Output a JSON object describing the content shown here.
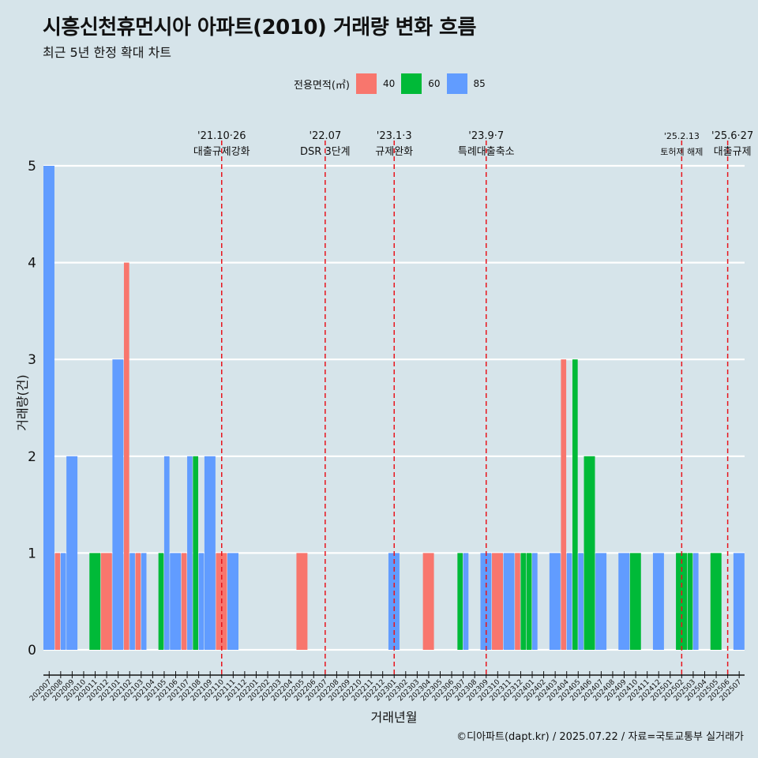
{
  "title": "시흥신천휴먼시아 아파트(2010) 거래량 변화 흐름",
  "subtitle": "최근 5년 한정 확대 차트",
  "caption": "©디아파트(dapt.kr) / 2025.07.22 / 자료=국토교통부 실거래가",
  "legend": {
    "title": "전용면적(㎡)",
    "items": [
      {
        "label": "40",
        "color": "#F8766D"
      },
      {
        "label": "60",
        "color": "#00BA38"
      },
      {
        "label": "85",
        "color": "#619CFF"
      }
    ]
  },
  "chart_data": {
    "type": "bar",
    "xlabel": "거래년월",
    "ylabel": "거래량(건)",
    "ylim": [
      0,
      5
    ],
    "yticks": [
      0,
      1,
      2,
      3,
      4,
      5
    ],
    "categories": [
      "202007",
      "202008",
      "202009",
      "202010",
      "202011",
      "202012",
      "202101",
      "202102",
      "202103",
      "202104",
      "202105",
      "202106",
      "202107",
      "202108",
      "202109",
      "202110",
      "202111",
      "202112",
      "202201",
      "202202",
      "202203",
      "202204",
      "202205",
      "202206",
      "202207",
      "202208",
      "202209",
      "202210",
      "202211",
      "202212",
      "202301",
      "202302",
      "202303",
      "202304",
      "202305",
      "202306",
      "202307",
      "202308",
      "202309",
      "202310",
      "202311",
      "202312",
      "202401",
      "202402",
      "202403",
      "202404",
      "202405",
      "202406",
      "202407",
      "202408",
      "202409",
      "202410",
      "202411",
      "202412",
      "202501",
      "202502",
      "202503",
      "202504",
      "202505",
      "202506",
      "202507"
    ],
    "series": [
      {
        "name": "40",
        "color": "#F8766D",
        "values": [
          0,
          1,
          0,
          0,
          0,
          1,
          0,
          4,
          1,
          0,
          0,
          0,
          1,
          0,
          0,
          1,
          0,
          0,
          0,
          0,
          0,
          0,
          1,
          0,
          0,
          0,
          0,
          0,
          0,
          0,
          0,
          0,
          0,
          1,
          0,
          0,
          0,
          0,
          0,
          1,
          0,
          1,
          0,
          0,
          0,
          3,
          0,
          0,
          0,
          0,
          0,
          0,
          0,
          0,
          0,
          0,
          0,
          0,
          0,
          0,
          0
        ]
      },
      {
        "name": "60",
        "color": "#00BA38",
        "values": [
          0,
          0,
          0,
          0,
          1,
          0,
          0,
          0,
          0,
          0,
          1,
          0,
          0,
          2,
          0,
          0,
          0,
          0,
          0,
          0,
          0,
          0,
          0,
          0,
          0,
          0,
          0,
          0,
          0,
          0,
          0,
          0,
          0,
          0,
          0,
          0,
          1,
          0,
          0,
          0,
          0,
          1,
          1,
          0,
          0,
          0,
          3,
          2,
          0,
          0,
          0,
          1,
          0,
          0,
          0,
          1,
          1,
          0,
          1,
          0,
          0
        ]
      },
      {
        "name": "85",
        "color": "#619CFF",
        "values": [
          5,
          1,
          2,
          0,
          0,
          0,
          3,
          1,
          1,
          0,
          2,
          1,
          2,
          1,
          2,
          0,
          1,
          0,
          0,
          0,
          0,
          0,
          0,
          0,
          0,
          0,
          0,
          0,
          0,
          0,
          1,
          0,
          0,
          0,
          0,
          0,
          1,
          0,
          1,
          0,
          1,
          0,
          1,
          0,
          1,
          1,
          1,
          0,
          1,
          0,
          1,
          0,
          0,
          1,
          0,
          0,
          1,
          0,
          0,
          0,
          1
        ]
      }
    ],
    "events": [
      {
        "category": "202110",
        "date": "'21.10·26",
        "label": "대출규제강화"
      },
      {
        "category": "202207",
        "date": "'22.07",
        "label": "DSR 3단계"
      },
      {
        "category": "202301",
        "date": "'23.1·3",
        "label": "규제완화"
      },
      {
        "category": "202309",
        "date": "'23.9·7",
        "label": "특례대출축소"
      },
      {
        "category": "202502",
        "date": "'25.2.13",
        "label": "토허제 해제"
      },
      {
        "category": "202506",
        "date": "'25.6·27",
        "label": "대출규제"
      }
    ],
    "grid": true,
    "legend_position": "top"
  }
}
